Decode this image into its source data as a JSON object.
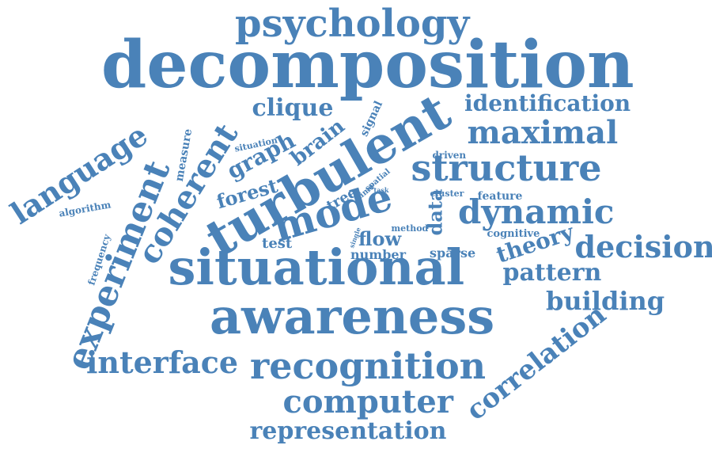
{
  "cloud": {
    "color": "#4a82b8",
    "words": [
      {
        "key": "decomposition",
        "text": "decomposition"
      },
      {
        "key": "situational",
        "text": "situational"
      },
      {
        "key": "awareness",
        "text": "awareness"
      },
      {
        "key": "turbulent",
        "text": "turbulent"
      },
      {
        "key": "psychology",
        "text": "psychology"
      },
      {
        "key": "structure",
        "text": "structure"
      },
      {
        "key": "mode",
        "text": "mode"
      },
      {
        "key": "recognition",
        "text": "recognition"
      },
      {
        "key": "experiment",
        "text": "experiment"
      },
      {
        "key": "coherent",
        "text": "coherent"
      },
      {
        "key": "language",
        "text": "language"
      },
      {
        "key": "dynamic",
        "text": "dynamic"
      },
      {
        "key": "maximal",
        "text": "maximal"
      },
      {
        "key": "decision",
        "text": "decision"
      },
      {
        "key": "interface",
        "text": "interface"
      },
      {
        "key": "computer",
        "text": "computer"
      },
      {
        "key": "correlation",
        "text": "correlation"
      },
      {
        "key": "identification",
        "text": "identification"
      },
      {
        "key": "clique",
        "text": "clique"
      },
      {
        "key": "building",
        "text": "building"
      },
      {
        "key": "pattern",
        "text": "pattern"
      },
      {
        "key": "representation",
        "text": "representation"
      },
      {
        "key": "theory",
        "text": "theory"
      },
      {
        "key": "graph",
        "text": "graph"
      },
      {
        "key": "brain",
        "text": "brain"
      },
      {
        "key": "forest",
        "text": "forest"
      },
      {
        "key": "flow",
        "text": "flow"
      },
      {
        "key": "data",
        "text": "data"
      },
      {
        "key": "measure",
        "text": "measure"
      },
      {
        "key": "tree",
        "text": "tree"
      },
      {
        "key": "signal",
        "text": "signal"
      },
      {
        "key": "test",
        "text": "test"
      },
      {
        "key": "number",
        "text": "number"
      },
      {
        "key": "sparse",
        "text": "sparse"
      },
      {
        "key": "feature",
        "text": "feature"
      },
      {
        "key": "cognitive",
        "text": "cognitive"
      },
      {
        "key": "driven",
        "text": "driven"
      },
      {
        "key": "algorithm",
        "text": "algorithm"
      },
      {
        "key": "frequency",
        "text": "frequency"
      },
      {
        "key": "situation",
        "text": "situation"
      },
      {
        "key": "cluster",
        "text": "cluster"
      },
      {
        "key": "method",
        "text": "method"
      },
      {
        "key": "spatial",
        "text": "spatial"
      },
      {
        "key": "time",
        "text": "time"
      },
      {
        "key": "task",
        "text": "task"
      },
      {
        "key": "single",
        "text": "single"
      }
    ]
  }
}
